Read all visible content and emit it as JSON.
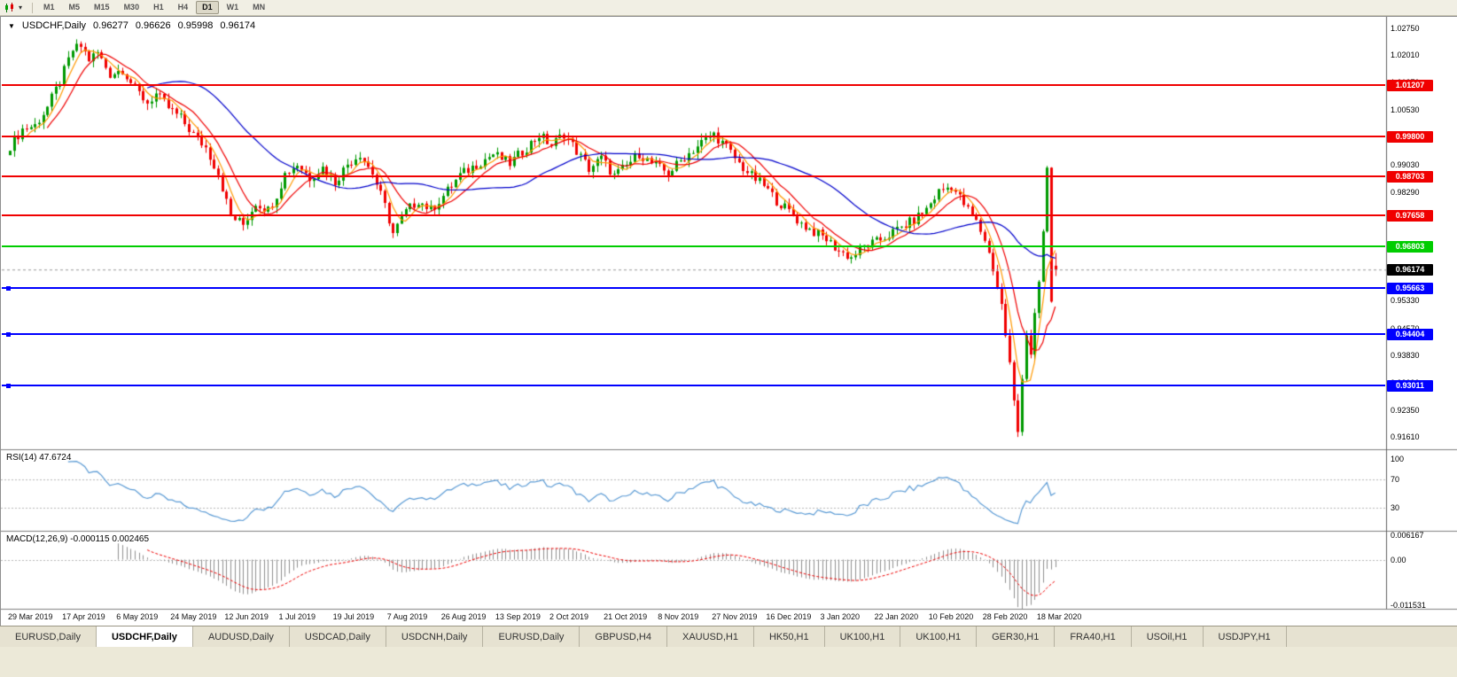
{
  "toolbar": {
    "caret": "▾",
    "timeframes": [
      "M1",
      "M5",
      "M15",
      "M30",
      "H1",
      "H4",
      "D1",
      "W1",
      "MN"
    ],
    "active_timeframe": "D1"
  },
  "chart": {
    "marker": "▼",
    "title": "USDCHF,Daily",
    "open": "0.96277",
    "high": "0.96626",
    "low": "0.95998",
    "close": "0.96174"
  },
  "price_axis": {
    "ticks": [
      "1.02750",
      "1.02010",
      "1.01270",
      "1.00530",
      "0.99790",
      "0.99030",
      "0.98290",
      "0.97550",
      "0.96810",
      "0.96070",
      "0.95330",
      "0.94570",
      "0.93830",
      "0.93090",
      "0.92350",
      "0.91610"
    ]
  },
  "hlines": [
    {
      "value": 1.01207,
      "label": "1.01207",
      "color": "#f00000",
      "kind": "resistance",
      "handle": false
    },
    {
      "value": 0.998,
      "label": "0.99800",
      "color": "#f00000",
      "kind": "resistance",
      "handle": false
    },
    {
      "value": 0.98703,
      "label": "0.98703",
      "color": "#f00000",
      "kind": "resistance",
      "handle": false
    },
    {
      "value": 0.97658,
      "label": "0.97658",
      "color": "#f00000",
      "kind": "resistance",
      "handle": false
    },
    {
      "value": 0.96803,
      "label": "0.96803",
      "color": "#00cd00",
      "kind": "pivot",
      "handle": false
    },
    {
      "value": 0.95663,
      "label": "0.95663",
      "color": "#0000ff",
      "kind": "support",
      "handle": true
    },
    {
      "value": 0.94404,
      "label": "0.94404",
      "color": "#0000ff",
      "kind": "support",
      "handle": true
    },
    {
      "value": 0.93011,
      "label": "0.93011",
      "color": "#0000ff",
      "kind": "support",
      "handle": true
    }
  ],
  "current_price": {
    "value": 0.96174,
    "label": "0.96174",
    "badge_color": "#000000"
  },
  "rsi_panel": {
    "label": "RSI(14) 47.6724",
    "axis_ticks": [
      {
        "v": 100,
        "label": "100"
      },
      {
        "v": 70,
        "label": "70"
      },
      {
        "v": 30,
        "label": "30"
      }
    ],
    "levels": [
      70,
      30
    ],
    "line_color": "#5b9bd5"
  },
  "macd_panel": {
    "label": "MACD(12,26,9) -0.000115 0.002465",
    "axis_ticks": [
      {
        "v": 0.006167,
        "label": "0.006167"
      },
      {
        "v": 0,
        "label": "0.00"
      },
      {
        "v": -0.011531,
        "label": "-0.011531"
      }
    ],
    "histogram_color": "#909090",
    "signal_color": "#f00000"
  },
  "date_axis": [
    "29 Mar 2019",
    "17 Apr 2019",
    "6 May 2019",
    "24 May 2019",
    "12 Jun 2019",
    "1 Jul 2019",
    "19 Jul 2019",
    "7 Aug 2019",
    "26 Aug 2019",
    "13 Sep 2019",
    "2 Oct 2019",
    "21 Oct 2019",
    "8 Nov 2019",
    "27 Nov 2019",
    "16 Dec 2019",
    "3 Jan 2020",
    "22 Jan 2020",
    "10 Feb 2020",
    "28 Feb 2020",
    "18 Mar 2020"
  ],
  "tabs": [
    "EURUSD,Daily",
    "USDCHF,Daily",
    "AUDUSD,Daily",
    "USDCAD,Daily",
    "USDCNH,Daily",
    "EURUSD,Daily",
    "GBPUSD,H4",
    "XAUUSD,H1",
    "HK50,H1",
    "UK100,H1",
    "UK100,H1",
    "GER30,H1",
    "FRA40,H1",
    "USOil,H1",
    "USDJPY,H1"
  ],
  "active_tab": "USDCHF,Daily",
  "active_tab_index": 1,
  "chart_data": {
    "type": "candlestick",
    "symbol": "USDCHF",
    "timeframe": "Daily",
    "n_candles": 252,
    "ylim": [
      0.913,
      1.0306
    ],
    "x_label_every": 13,
    "x_labels": [
      "29 Mar 2019",
      "17 Apr 2019",
      "6 May 2019",
      "24 May 2019",
      "12 Jun 2019",
      "1 Jul 2019",
      "19 Jul 2019",
      "7 Aug 2019",
      "26 Aug 2019",
      "13 Sep 2019",
      "2 Oct 2019",
      "21 Oct 2019",
      "8 Nov 2019",
      "27 Nov 2019",
      "16 Dec 2019",
      "3 Jan 2020",
      "22 Jan 2020",
      "10 Feb 2020",
      "28 Feb 2020",
      "18 Mar 2020"
    ],
    "close_anchors": [
      [
        0,
        0.9955
      ],
      [
        3,
        1.0
      ],
      [
        6,
        1.001
      ],
      [
        9,
        1.006
      ],
      [
        12,
        1.013
      ],
      [
        15,
        1.0215
      ],
      [
        17,
        1.0226
      ],
      [
        19,
        1.019
      ],
      [
        21,
        1.0208
      ],
      [
        24,
        1.015
      ],
      [
        27,
        1.0163
      ],
      [
        30,
        1.011
      ],
      [
        33,
        1.0072
      ],
      [
        35,
        1.0095
      ],
      [
        38,
        1.0058
      ],
      [
        41,
        1.003
      ],
      [
        44,
        0.9985
      ],
      [
        47,
        0.995
      ],
      [
        50,
        0.988
      ],
      [
        53,
        0.9762
      ],
      [
        56,
        0.974
      ],
      [
        59,
        0.98
      ],
      [
        62,
        0.978
      ],
      [
        64,
        0.9822
      ],
      [
        66,
        0.9878
      ],
      [
        69,
        0.9905
      ],
      [
        72,
        0.9868
      ],
      [
        75,
        0.9895
      ],
      [
        78,
        0.9856
      ],
      [
        81,
        0.9905
      ],
      [
        84,
        0.9933
      ],
      [
        87,
        0.988
      ],
      [
        90,
        0.979
      ],
      [
        92,
        0.9716
      ],
      [
        95,
        0.9775
      ],
      [
        98,
        0.9806
      ],
      [
        101,
        0.978
      ],
      [
        104,
        0.9818
      ],
      [
        108,
        0.9874
      ],
      [
        112,
        0.9904
      ],
      [
        116,
        0.9932
      ],
      [
        120,
        0.9906
      ],
      [
        124,
        0.995
      ],
      [
        127,
        0.9984
      ],
      [
        130,
        0.9956
      ],
      [
        133,
        0.9988
      ],
      [
        136,
        0.994
      ],
      [
        139,
        0.9892
      ],
      [
        142,
        0.992
      ],
      [
        145,
        0.9872
      ],
      [
        148,
        0.99
      ],
      [
        151,
        0.9934
      ],
      [
        154,
        0.9906
      ],
      [
        158,
        0.988
      ],
      [
        162,
        0.9924
      ],
      [
        166,
        0.9964
      ],
      [
        169,
        0.9986
      ],
      [
        172,
        0.995
      ],
      [
        175,
        0.9906
      ],
      [
        178,
        0.9872
      ],
      [
        181,
        0.9846
      ],
      [
        184,
        0.9806
      ],
      [
        187,
        0.9776
      ],
      [
        190,
        0.9742
      ],
      [
        193,
        0.972
      ],
      [
        196,
        0.97
      ],
      [
        199,
        0.9668
      ],
      [
        202,
        0.965
      ],
      [
        205,
        0.968
      ],
      [
        208,
        0.9692
      ],
      [
        211,
        0.9712
      ],
      [
        214,
        0.9732
      ],
      [
        217,
        0.9752
      ],
      [
        220,
        0.9782
      ],
      [
        223,
        0.983
      ],
      [
        226,
        0.9846
      ],
      [
        229,
        0.9796
      ],
      [
        232,
        0.9746
      ],
      [
        234,
        0.97
      ],
      [
        236,
        0.962
      ],
      [
        238,
        0.952
      ],
      [
        240,
        0.936
      ],
      [
        241,
        0.9255
      ],
      [
        242,
        0.9175
      ],
      [
        243,
        0.933
      ],
      [
        244,
        0.9442
      ],
      [
        245,
        0.939
      ],
      [
        246,
        0.9492
      ],
      [
        247,
        0.9572
      ],
      [
        248,
        0.972
      ],
      [
        249,
        0.9895
      ],
      [
        250,
        0.953
      ],
      [
        251,
        0.96174
      ]
    ],
    "last_candle": {
      "open": 0.96277,
      "high": 0.96626,
      "low": 0.95998,
      "close": 0.96174
    },
    "extremes": {
      "high": [
        17,
        1.02262
      ],
      "low": [
        242,
        0.9161
      ],
      "spike_high": [
        249,
        0.98996
      ]
    },
    "moving_averages": [
      {
        "period": 5,
        "color": "#ff9900"
      },
      {
        "period": 10,
        "color": "#f00000"
      },
      {
        "period": 34,
        "color": "#0000cc"
      }
    ],
    "horizontal_levels": [
      1.01207,
      0.998,
      0.98703,
      0.97658,
      0.96803,
      0.95663,
      0.94404,
      0.93011
    ],
    "indicators": [
      {
        "type": "RSI",
        "period": 14,
        "current": 47.6724,
        "range": [
          0,
          100
        ],
        "levels": [
          30,
          70
        ]
      },
      {
        "type": "MACD",
        "fast": 12,
        "slow": 26,
        "signal": 9,
        "current_main": -0.000115,
        "current_signal": 0.002465,
        "range": [
          -0.011531,
          0.006167
        ]
      }
    ]
  }
}
